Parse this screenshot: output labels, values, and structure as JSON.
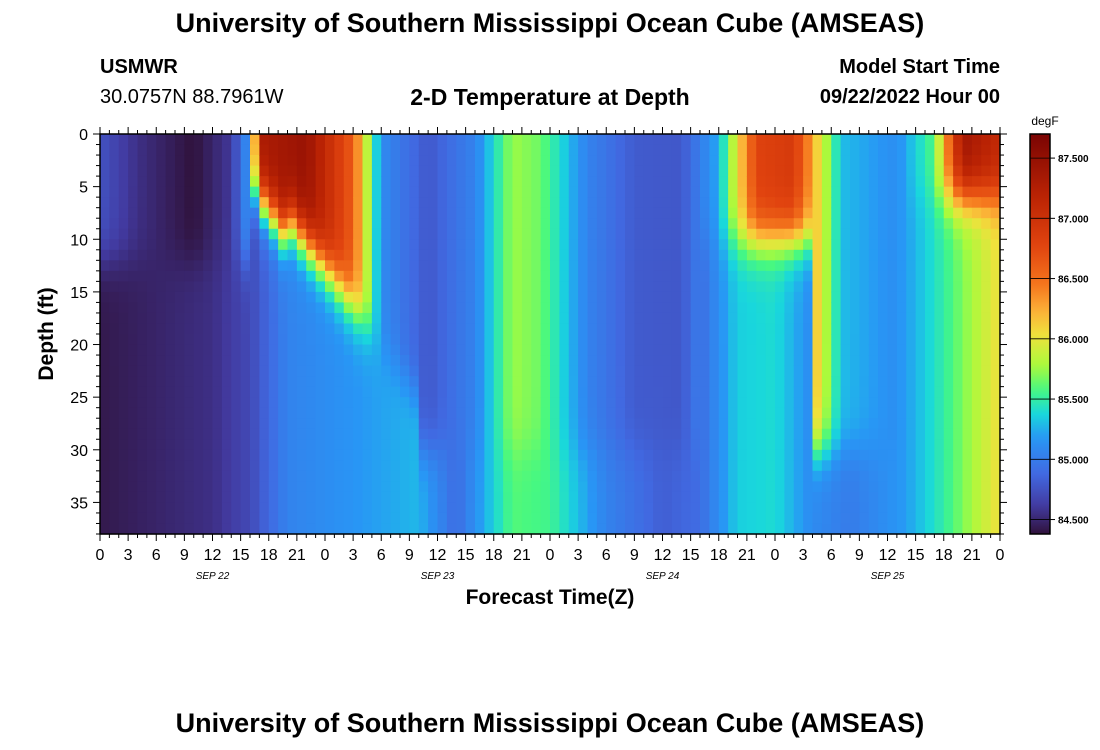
{
  "header": {
    "title": "University of Southern Mississippi Ocean Cube (AMSEAS)",
    "station_id": "USMWR",
    "station_coords": "30.0757N  88.7961W",
    "plot_title": "2-D Temperature at Depth",
    "model_start_label": "Model Start Time",
    "model_start_value": "09/22/2022 Hour 00",
    "bottom_title": "University of Southern Mississippi Ocean Cube (AMSEAS)"
  },
  "chart_data": {
    "type": "heatmap",
    "title": "2-D Temperature at Depth",
    "xlabel": "Forecast Time(Z)",
    "ylabel": "Depth (ft)",
    "x_tick_labels": [
      "0",
      "3",
      "6",
      "9",
      "12",
      "15",
      "18",
      "21",
      "0",
      "3",
      "6",
      "9",
      "12",
      "15",
      "18",
      "21",
      "0",
      "3",
      "6",
      "9",
      "12",
      "15",
      "18",
      "21",
      "0",
      "3",
      "6",
      "9",
      "12",
      "15",
      "18",
      "21",
      "0"
    ],
    "x_hours_range": [
      0,
      96
    ],
    "date_labels": [
      {
        "label": "SEP 22",
        "hour": 12
      },
      {
        "label": "SEP 23",
        "hour": 36
      },
      {
        "label": "SEP 24",
        "hour": 60
      },
      {
        "label": "SEP 25",
        "hour": 84
      }
    ],
    "y_ticks": [
      0,
      5,
      10,
      15,
      20,
      25,
      30,
      35
    ],
    "y_tick_labels": [
      "0",
      "5",
      "10",
      "15",
      "20",
      "25",
      "30",
      "35"
    ],
    "ylim": [
      0,
      38
    ],
    "y_inverted": true,
    "colorbar": {
      "unit": "degF",
      "range": [
        84.38,
        87.7
      ],
      "tick_values": [
        84.5,
        85.0,
        85.5,
        86.0,
        86.5,
        87.0,
        87.5
      ],
      "tick_labels": [
        "84.500",
        "85.000",
        "85.500",
        "86.000",
        "86.500",
        "87.000",
        "87.500"
      ]
    },
    "surface_temperature_estimates": [
      {
        "hour": 0,
        "degF": 84.75
      },
      {
        "hour": 4,
        "degF": 84.55
      },
      {
        "hour": 10,
        "degF": 84.38
      },
      {
        "hour": 14,
        "degF": 84.6
      },
      {
        "hour": 16,
        "degF": 85.2
      },
      {
        "hour": 17,
        "degF": 87.3
      },
      {
        "hour": 22,
        "degF": 87.45
      },
      {
        "hour": 27,
        "degF": 86.6
      },
      {
        "hour": 30,
        "degF": 85.1
      },
      {
        "hour": 35,
        "degF": 84.78
      },
      {
        "hour": 40,
        "degF": 85.05
      },
      {
        "hour": 44,
        "degF": 85.75
      },
      {
        "hour": 47,
        "degF": 85.65
      },
      {
        "hour": 52,
        "degF": 85.05
      },
      {
        "hour": 57,
        "degF": 84.8
      },
      {
        "hour": 62,
        "degF": 84.78
      },
      {
        "hour": 66,
        "degF": 85.25
      },
      {
        "hour": 70,
        "degF": 86.8
      },
      {
        "hour": 74,
        "degF": 86.9
      },
      {
        "hour": 79,
        "degF": 85.3
      },
      {
        "hour": 85,
        "degF": 85.12
      },
      {
        "hour": 89,
        "degF": 85.6
      },
      {
        "hour": 92,
        "degF": 87.4
      },
      {
        "hour": 96,
        "degF": 87.1
      }
    ],
    "bottom_temperature_estimates": [
      {
        "hour": 0,
        "degF": 84.42
      },
      {
        "hour": 12,
        "degF": 84.55
      },
      {
        "hour": 16,
        "degF": 84.7
      },
      {
        "hour": 20,
        "degF": 85.05
      },
      {
        "hour": 26,
        "degF": 85.15
      },
      {
        "hour": 34,
        "degF": 85.28
      },
      {
        "hour": 38,
        "degF": 84.9
      },
      {
        "hour": 44,
        "degF": 85.6
      },
      {
        "hour": 48,
        "degF": 85.55
      },
      {
        "hour": 54,
        "degF": 85.05
      },
      {
        "hour": 60,
        "degF": 84.82
      },
      {
        "hour": 64,
        "degF": 84.9
      },
      {
        "hour": 68,
        "degF": 85.35
      },
      {
        "hour": 72,
        "degF": 85.4
      },
      {
        "hour": 76,
        "degF": 85.1
      },
      {
        "hour": 80,
        "degF": 85.0
      },
      {
        "hour": 86,
        "degF": 85.2
      },
      {
        "hour": 90,
        "degF": 85.5
      },
      {
        "hour": 96,
        "degF": 86.05
      }
    ],
    "legend_position": "right"
  }
}
